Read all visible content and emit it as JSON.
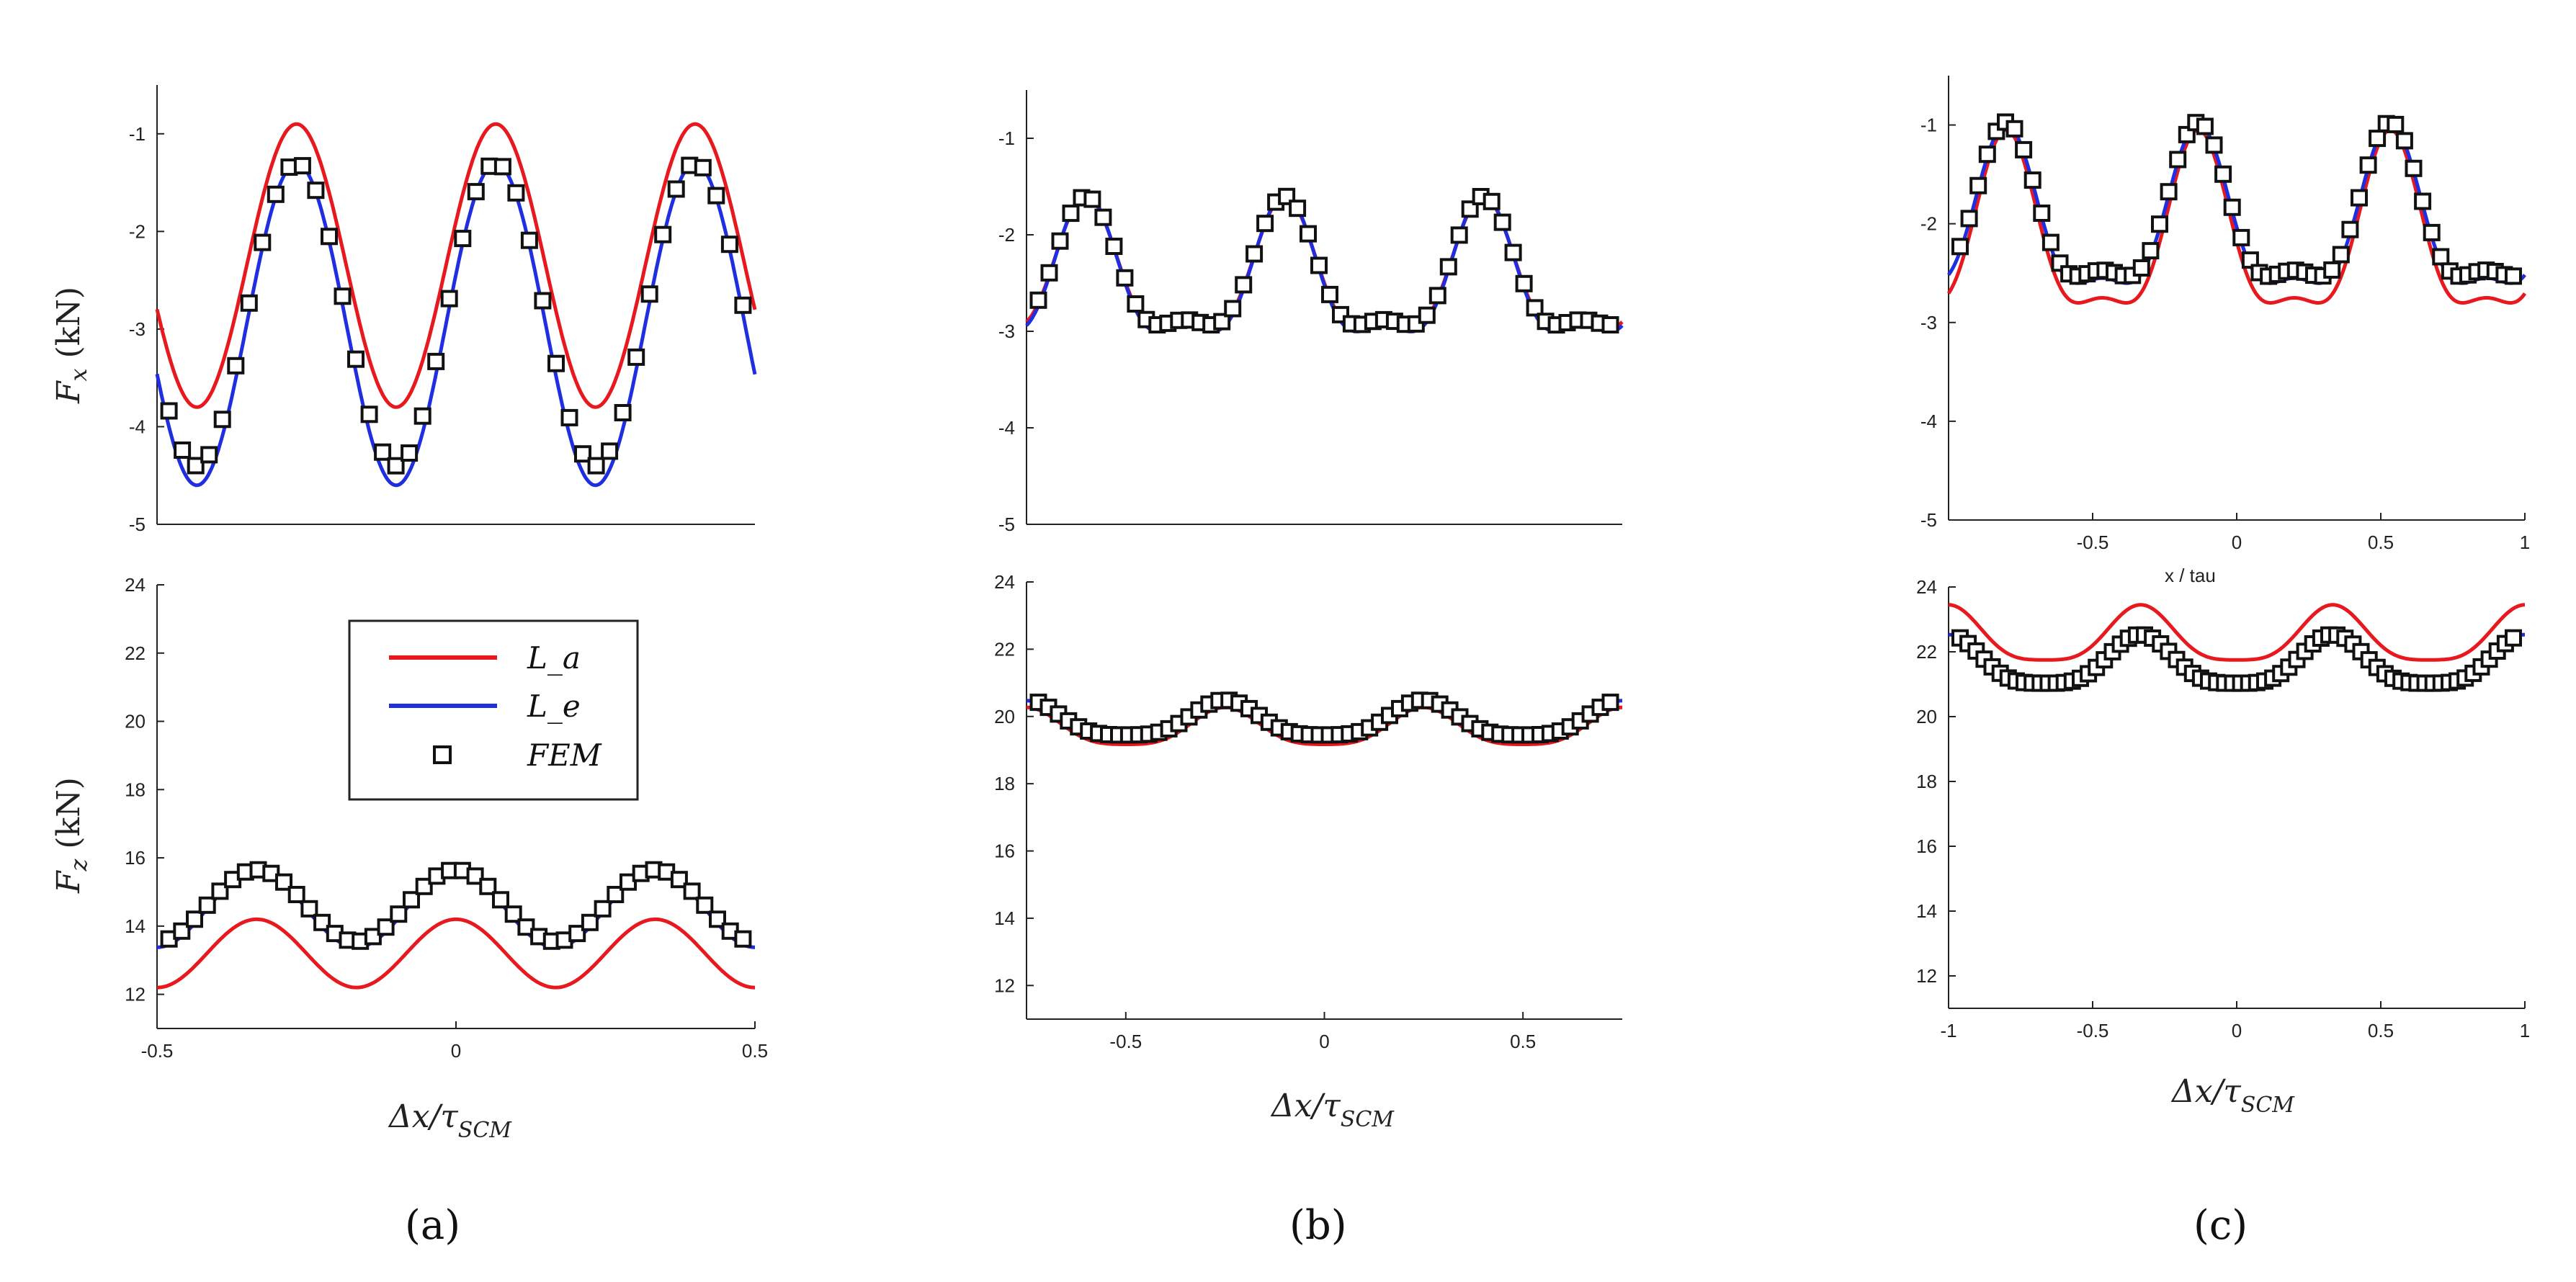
{
  "colors": {
    "La": "#e8191e",
    "Le": "#1f2ee0",
    "FEM": "#111111"
  },
  "legend": {
    "La": "L_a",
    "Le": "L_e",
    "FEM": "FEM",
    "placement": "inside bottom-left Fz plot of panel (a)"
  },
  "chart_data": [
    {
      "id": "a-fx",
      "panel": "a",
      "type": "line",
      "ylabel": "Fx (kN)",
      "xlabel": "",
      "xlim": [
        -0.5,
        0.5
      ],
      "ylim": [
        -5,
        -0.5
      ],
      "yticks": [
        -1,
        -2,
        -3,
        -4,
        -5
      ],
      "xticks": [],
      "series": [
        {
          "name": "L_a",
          "kind": "line",
          "mean": -2.35,
          "amp": 1.45,
          "period": 0.3333,
          "phase": -0.2667,
          "harm2amp": 0,
          "harm2phase": 0
        },
        {
          "name": "L_e",
          "kind": "line",
          "mean": -2.95,
          "amp": 1.65,
          "period": 0.3333,
          "phase": -0.2667,
          "harm2amp": 0,
          "harm2phase": 0
        },
        {
          "name": "FEM",
          "kind": "markers",
          "mean": -2.85,
          "amp": 1.55,
          "period": 0.3333,
          "phase": -0.2667,
          "harm2amp": 0,
          "harm2phase": 0,
          "n": 44
        }
      ]
    },
    {
      "id": "a-fz",
      "panel": "a",
      "type": "line",
      "ylabel": "Fz (kN)",
      "xlabel": "Δx/τSCM",
      "xlim": [
        -0.5,
        0.5
      ],
      "ylim": [
        11,
        24
      ],
      "yticks": [
        24,
        22,
        20,
        18,
        16,
        14,
        12
      ],
      "xticks": [
        -0.5,
        0,
        0.5
      ],
      "series": [
        {
          "name": "L_a",
          "kind": "line",
          "mean": 13.2,
          "amp": 1.0,
          "period": 0.3333,
          "phase": -0.3333,
          "harm2amp": 0,
          "harm2phase": 0
        },
        {
          "name": "L_e",
          "kind": "line",
          "mean": 14.5,
          "amp": 1.12,
          "period": 0.3333,
          "phase": -0.3333,
          "harm2amp": 0,
          "harm2phase": 0
        },
        {
          "name": "FEM",
          "kind": "markers",
          "mean": 14.6,
          "amp": 1.05,
          "period": 0.3333,
          "phase": -0.3333,
          "harm2amp": 0,
          "harm2phase": 0,
          "n": 46
        }
      ]
    },
    {
      "id": "b-fx",
      "panel": "b",
      "type": "line",
      "ylabel": "",
      "xlabel": "",
      "xlim": [
        -0.75,
        0.75
      ],
      "ylim": [
        -5,
        -0.5
      ],
      "yticks": [
        -1,
        -2,
        -3,
        -4,
        -5
      ],
      "xticks": [],
      "series": [
        {
          "name": "L_a",
          "kind": "line",
          "mean": -2.5,
          "amp": 0.65,
          "period": 0.5,
          "phase": -0.6,
          "harm2amp": 0.25,
          "harm2phase": -0.6
        },
        {
          "name": "L_e",
          "kind": "line",
          "mean": -2.52,
          "amp": 0.68,
          "period": 0.5,
          "phase": -0.6,
          "harm2amp": 0.26,
          "harm2phase": -0.6
        },
        {
          "name": "FEM",
          "kind": "markers",
          "mean": -2.48,
          "amp": 0.64,
          "period": 0.5,
          "phase": -0.6,
          "harm2amp": 0.24,
          "harm2phase": -0.6,
          "n": 54
        }
      ]
    },
    {
      "id": "b-fz",
      "panel": "b",
      "type": "line",
      "ylabel": "",
      "xlabel": "Δx/τSCM",
      "xlim": [
        -0.75,
        0.75
      ],
      "ylim": [
        11,
        24
      ],
      "yticks": [
        24,
        22,
        20,
        18,
        16,
        14,
        12
      ],
      "xticks": [
        -0.5,
        0,
        0.5
      ],
      "series": [
        {
          "name": "L_a",
          "kind": "line",
          "mean": 19.6,
          "amp": 0.55,
          "period": 0.5,
          "phase": -0.75,
          "harm2amp": 0.12,
          "harm2phase": -0.75
        },
        {
          "name": "L_e",
          "kind": "line",
          "mean": 19.8,
          "amp": 0.55,
          "period": 0.5,
          "phase": -0.75,
          "harm2amp": 0.12,
          "harm2phase": -0.75
        },
        {
          "name": "FEM",
          "kind": "markers",
          "mean": 19.85,
          "amp": 0.52,
          "period": 0.5,
          "phase": -0.75,
          "harm2amp": 0.12,
          "harm2phase": -0.75,
          "n": 58
        }
      ]
    },
    {
      "id": "c-fx",
      "panel": "c",
      "type": "line",
      "ylabel": "",
      "xlabel": "x / tau",
      "xlim": [
        -1,
        1
      ],
      "ylim": [
        -5,
        -0.5
      ],
      "yticks": [
        -1,
        -2,
        -3,
        -4,
        -5
      ],
      "xticks": [
        -0.5,
        0,
        0.5,
        1
      ],
      "series": [
        {
          "name": "L_a",
          "kind": "line",
          "mean": -2.2,
          "amp": 0.85,
          "period": 0.6667,
          "phase": -0.8,
          "harm2amp": 0.3,
          "harm2phase": -0.8
        },
        {
          "name": "L_e",
          "kind": "line",
          "mean": -2.05,
          "amp": 0.78,
          "period": 0.6667,
          "phase": -0.8,
          "harm2amp": 0.28,
          "harm2phase": -0.8
        },
        {
          "name": "FEM",
          "kind": "markers",
          "mean": -2.0,
          "amp": 0.75,
          "period": 0.6667,
          "phase": -0.8,
          "harm2amp": 0.28,
          "harm2phase": -0.8,
          "n": 62
        }
      ]
    },
    {
      "id": "c-fz",
      "panel": "c",
      "type": "line",
      "ylabel": "",
      "xlabel": "Δx/τSCM",
      "xlim": [
        -1,
        1
      ],
      "ylim": [
        11,
        24
      ],
      "yticks": [
        24,
        22,
        20,
        18,
        16,
        14,
        12
      ],
      "xticks": [
        -1,
        -0.5,
        0,
        0.5,
        1
      ],
      "series": [
        {
          "name": "L_a",
          "kind": "line",
          "mean": 22.4,
          "amp": 0.85,
          "period": 0.6667,
          "phase": -0.3333,
          "harm2amp": 0.2,
          "harm2phase": -0.3333
        },
        {
          "name": "L_e",
          "kind": "line",
          "mean": 21.6,
          "amp": 0.75,
          "period": 0.6667,
          "phase": -0.3333,
          "harm2amp": 0.18,
          "harm2phase": -0.3333
        },
        {
          "name": "FEM",
          "kind": "markers",
          "mean": 21.6,
          "amp": 0.75,
          "period": 0.6667,
          "phase": -0.3333,
          "harm2amp": 0.18,
          "harm2phase": -0.3333,
          "n": 70
        }
      ]
    }
  ],
  "panel_labels": {
    "a": "(a)",
    "b": "(b)",
    "c": "(c)"
  },
  "axis_text": {
    "fx_prefix": "F",
    "fx_sub": "x",
    "fx_unit": " (kN)",
    "fz_prefix": "F",
    "fz_sub": "z",
    "fz_unit": " (kN)",
    "dx_main": "Δx/τ",
    "dx_sub": "SCM",
    "c_top_xlabel": "x / tau"
  }
}
